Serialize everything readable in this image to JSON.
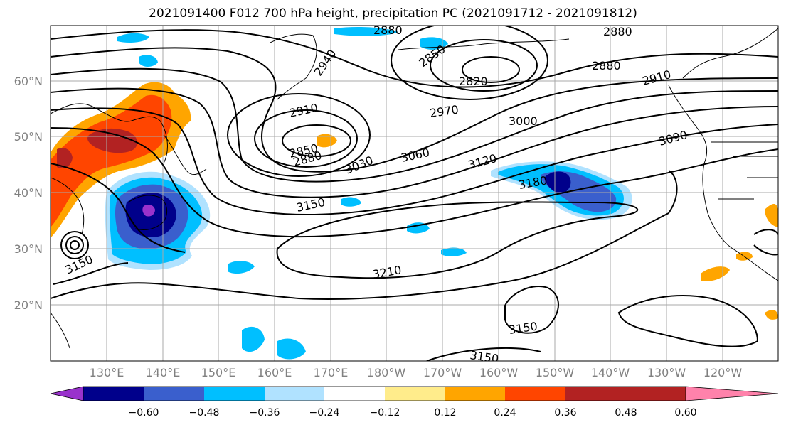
{
  "title": "2021091400 F012 700 hPa height, precipitation PC (2021091712 - 2021091812)",
  "latitude_labels": [
    "60°N",
    "50°N",
    "40°N",
    "30°N",
    "20°N"
  ],
  "longitude_labels": [
    "130°E",
    "140°E",
    "150°E",
    "160°E",
    "170°E",
    "180°W",
    "170°W",
    "160°W",
    "150°W",
    "140°W",
    "130°W",
    "120°W"
  ],
  "colorbar": {
    "colors": [
      "#9932cc",
      "#00008b",
      "#3a5fcd",
      "#00bfff",
      "#b0e2ff",
      "#ffffff",
      "#ffec8b",
      "#ffa500",
      "#ff4500",
      "#b22222",
      "#ff82ab"
    ],
    "tick_labels": [
      "−0.60",
      "−0.48",
      "−0.36",
      "−0.24",
      "−0.12",
      "0.12",
      "0.24",
      "0.36",
      "0.48",
      "0.60"
    ]
  },
  "contour_labels": [
    "2880",
    "2880",
    "2850",
    "2820",
    "2880",
    "2910",
    "2940",
    "2970",
    "3000",
    "3090",
    "2910",
    "2850",
    "2880",
    "3030",
    "3060",
    "3120",
    "3180",
    "3150",
    "3150",
    "3210",
    "3150",
    "3150"
  ]
}
